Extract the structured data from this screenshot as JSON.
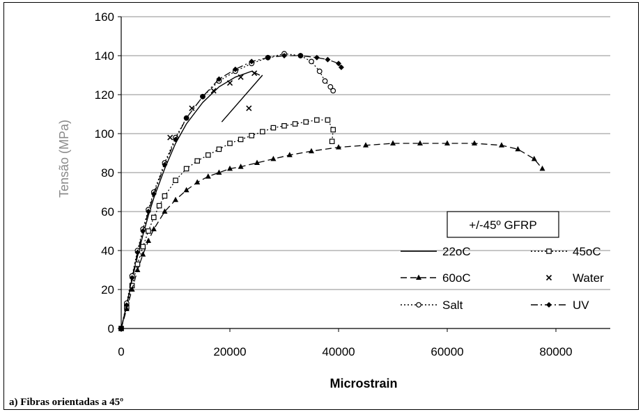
{
  "caption": "a)  Fibras orientadas a 45º",
  "chart_data": {
    "type": "line",
    "xlabel": "Microstrain",
    "ylabel": "Tensão (MPa)",
    "xlim": [
      0,
      90000
    ],
    "ylim": [
      0,
      160
    ],
    "xticks": [
      0,
      20000,
      40000,
      60000,
      80000
    ],
    "yticks": [
      0,
      20,
      40,
      60,
      80,
      100,
      120,
      140,
      160
    ],
    "grid": "horizontal",
    "legend_position": "bottom-right",
    "legend_title": "+/-45º GFRP",
    "series": [
      {
        "name": "22oC",
        "style": "solid",
        "marker": "none",
        "x": [
          0,
          1000,
          2000,
          3000,
          4000,
          5000,
          6000,
          8000,
          10000,
          12000,
          15000,
          18000,
          21000,
          24000,
          25500
        ],
        "y": [
          0,
          12,
          25,
          37,
          48,
          58,
          67,
          82,
          95,
          105,
          116,
          124,
          129,
          132,
          130
        ]
      },
      {
        "name": "45oC",
        "style": "dotted",
        "marker": "square",
        "x": [
          0,
          1000,
          2000,
          3000,
          4000,
          5000,
          6000,
          7000,
          8000,
          10000,
          12000,
          14000,
          16000,
          18000,
          20000,
          22000,
          24000,
          26000,
          28000,
          30000,
          32000,
          34000,
          36000,
          38000,
          39000,
          38800
        ],
        "y": [
          0,
          11,
          22,
          33,
          42,
          50,
          57,
          63,
          68,
          76,
          82,
          86,
          89,
          92,
          95,
          97,
          99,
          101,
          103,
          104,
          105,
          106,
          107,
          107,
          102,
          96
        ]
      },
      {
        "name": "60oC",
        "style": "dashed",
        "marker": "triangle",
        "x": [
          0,
          1000,
          2000,
          3000,
          4000,
          5000,
          6000,
          8000,
          10000,
          12000,
          14000,
          16000,
          18000,
          20000,
          22000,
          25000,
          28000,
          31000,
          35000,
          40000,
          45000,
          50000,
          55000,
          60000,
          65000,
          70000,
          73000,
          76000,
          77500
        ],
        "y": [
          0,
          10,
          20,
          30,
          38,
          45,
          51,
          60,
          66,
          71,
          75,
          78,
          80,
          82,
          83,
          85,
          87,
          89,
          91,
          93,
          94,
          95,
          95,
          95,
          95,
          94,
          92,
          87,
          82
        ]
      },
      {
        "name": "Water",
        "style": "none",
        "marker": "x",
        "x": [
          9000,
          13000,
          17000,
          20000,
          22000,
          24500,
          23500
        ],
        "y": [
          98,
          113,
          122,
          126,
          129,
          131,
          113
        ]
      },
      {
        "name": "Salt",
        "style": "dotted",
        "marker": "circle",
        "x": [
          0,
          1000,
          2000,
          3000,
          4000,
          5000,
          6000,
          8000,
          10000,
          12000,
          15000,
          18000,
          21000,
          24000,
          27000,
          30000,
          33000,
          35000,
          36500,
          37500,
          38500,
          39000
        ],
        "y": [
          0,
          13,
          27,
          40,
          51,
          61,
          70,
          85,
          98,
          108,
          119,
          127,
          132,
          136,
          139,
          141,
          140,
          137,
          132,
          127,
          124,
          122
        ]
      },
      {
        "name": "UV",
        "style": "dashdot",
        "marker": "diamond",
        "x": [
          0,
          1000,
          2000,
          3000,
          4000,
          5000,
          6000,
          8000,
          10000,
          12000,
          15000,
          18000,
          21000,
          24000,
          27000,
          30000,
          33000,
          36000,
          38000,
          40000,
          40500
        ],
        "y": [
          0,
          12,
          26,
          39,
          50,
          60,
          69,
          84,
          97,
          108,
          119,
          128,
          133,
          137,
          139,
          140,
          140,
          139,
          138,
          136,
          134
        ]
      }
    ]
  }
}
